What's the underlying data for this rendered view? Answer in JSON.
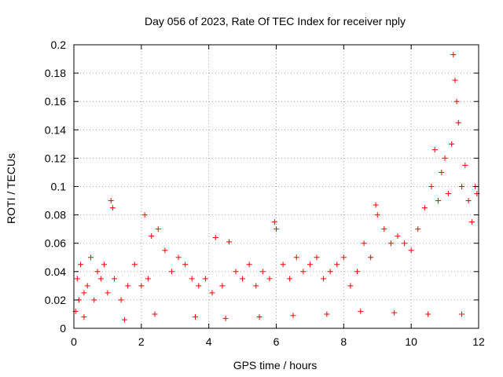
{
  "chart_data": {
    "type": "scatter",
    "title": "Day 056 of 2023, Rate Of TEC Index for receiver nply",
    "xlabel": "GPS time / hours",
    "ylabel": "ROTI / TECUs",
    "xlim": [
      0,
      12
    ],
    "ylim": [
      0,
      0.2
    ],
    "x_ticks": [
      "0",
      "2",
      "4",
      "6",
      "8",
      "10",
      "12"
    ],
    "y_ticks": [
      "0",
      "0.02",
      "0.04",
      "0.06",
      "0.08",
      "0.1",
      "0.12",
      "0.14",
      "0.16",
      "0.18",
      "0.2"
    ],
    "grid": true,
    "marker": "plus",
    "marker_color": "#ff0000",
    "series": [
      {
        "points": [
          [
            0.05,
            0.012
          ],
          [
            0.1,
            0.035
          ],
          [
            0.15,
            0.02
          ],
          [
            0.2,
            0.045
          ],
          [
            0.3,
            0.025
          ],
          [
            0.4,
            0.03
          ],
          [
            0.5,
            0.05
          ],
          [
            0.6,
            0.02
          ],
          [
            0.7,
            0.04
          ],
          [
            0.8,
            0.035
          ],
          [
            0.9,
            0.045
          ],
          [
            1.0,
            0.025
          ],
          [
            1.1,
            0.09
          ],
          [
            1.15,
            0.085
          ],
          [
            1.2,
            0.035
          ],
          [
            1.4,
            0.02
          ],
          [
            1.6,
            0.03
          ],
          [
            1.8,
            0.045
          ],
          [
            2.0,
            0.03
          ],
          [
            2.1,
            0.08
          ],
          [
            2.2,
            0.035
          ],
          [
            2.3,
            0.065
          ],
          [
            2.5,
            0.07
          ],
          [
            2.7,
            0.055
          ],
          [
            2.9,
            0.04
          ],
          [
            3.1,
            0.05
          ],
          [
            3.3,
            0.045
          ],
          [
            3.5,
            0.035
          ],
          [
            3.7,
            0.03
          ],
          [
            3.9,
            0.035
          ],
          [
            4.1,
            0.025
          ],
          [
            4.2,
            0.064
          ],
          [
            4.4,
            0.03
          ],
          [
            4.6,
            0.061
          ],
          [
            4.8,
            0.04
          ],
          [
            5.0,
            0.035
          ],
          [
            5.2,
            0.045
          ],
          [
            5.4,
            0.03
          ],
          [
            5.6,
            0.04
          ],
          [
            5.8,
            0.035
          ],
          [
            5.95,
            0.075
          ],
          [
            6.0,
            0.07
          ],
          [
            6.2,
            0.045
          ],
          [
            6.4,
            0.035
          ],
          [
            6.6,
            0.05
          ],
          [
            6.8,
            0.04
          ],
          [
            7.0,
            0.045
          ],
          [
            7.2,
            0.05
          ],
          [
            7.4,
            0.035
          ],
          [
            7.6,
            0.04
          ],
          [
            7.8,
            0.045
          ],
          [
            8.0,
            0.05
          ],
          [
            8.2,
            0.03
          ],
          [
            8.4,
            0.04
          ],
          [
            8.6,
            0.06
          ],
          [
            8.8,
            0.05
          ],
          [
            8.95,
            0.087
          ],
          [
            9.0,
            0.08
          ],
          [
            9.2,
            0.07
          ],
          [
            9.4,
            0.06
          ],
          [
            9.6,
            0.065
          ],
          [
            9.8,
            0.06
          ],
          [
            10.0,
            0.055
          ],
          [
            10.2,
            0.07
          ],
          [
            10.4,
            0.085
          ],
          [
            10.6,
            0.1
          ],
          [
            10.7,
            0.126
          ],
          [
            10.8,
            0.09
          ],
          [
            10.9,
            0.11
          ],
          [
            11.0,
            0.12
          ],
          [
            11.1,
            0.095
          ],
          [
            11.2,
            0.13
          ],
          [
            11.25,
            0.193
          ],
          [
            11.3,
            0.175
          ],
          [
            11.35,
            0.16
          ],
          [
            11.4,
            0.145
          ],
          [
            11.5,
            0.1
          ],
          [
            11.6,
            0.115
          ],
          [
            11.7,
            0.09
          ],
          [
            11.8,
            0.075
          ],
          [
            11.9,
            0.1
          ],
          [
            11.95,
            0.095
          ],
          [
            0.3,
            0.008
          ],
          [
            1.5,
            0.006
          ],
          [
            2.4,
            0.01
          ],
          [
            3.6,
            0.008
          ],
          [
            4.5,
            0.007
          ],
          [
            5.5,
            0.008
          ],
          [
            6.5,
            0.009
          ],
          [
            7.5,
            0.01
          ],
          [
            8.5,
            0.012
          ],
          [
            9.5,
            0.011
          ],
          [
            10.5,
            0.01
          ],
          [
            11.5,
            0.01
          ]
        ]
      }
    ]
  }
}
